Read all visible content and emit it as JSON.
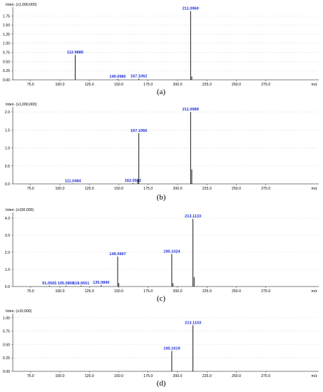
{
  "chart_data": [
    {
      "type": "bar",
      "panel_label": "(a)",
      "ylabel": "Inten. (x1,000,000)",
      "xlabel": "m/z",
      "xlim": [
        60,
        320
      ],
      "ylim": [
        0,
        1.95
      ],
      "xticks": [
        75.0,
        100.0,
        125.0,
        150.0,
        175.0,
        200.0,
        225.0,
        250.0,
        275.0
      ],
      "xtick_labels": [
        "75.0",
        "100.0",
        "125.0",
        "150.0",
        "175.0",
        "200.0",
        "225.0",
        "250.0",
        "275.0"
      ],
      "yticks": [
        0,
        0.25,
        0.5,
        0.75,
        1.0,
        1.25,
        1.5,
        1.75
      ],
      "ytick_labels": [
        "0.00",
        "0.25",
        "0.50",
        "0.75",
        "1.00",
        "1.25",
        "1.50",
        "1.75"
      ],
      "peaks": [
        {
          "mz": 112.9886,
          "value": 0.68,
          "label": "112.9886"
        },
        {
          "mz": 149.0985,
          "value": 0.02,
          "label": "149.0985"
        },
        {
          "mz": 167.1062,
          "value": 0.03,
          "label": "167.1062"
        },
        {
          "mz": 211.096,
          "value": 1.88,
          "label": "211.0960"
        },
        {
          "mz": 212.1,
          "value": 0.09,
          "label": ""
        }
      ]
    },
    {
      "type": "bar",
      "panel_label": "(b)",
      "ylabel": "Inten. (x1,000,000)",
      "xlabel": "m/z",
      "xlim": [
        60,
        320
      ],
      "ylim": [
        0,
        2.1
      ],
      "xticks": [
        75.0,
        100.0,
        125.0,
        150.0,
        175.0,
        200.0,
        225.0,
        250.0,
        275.0
      ],
      "xtick_labels": [
        "75.0",
        "100.0",
        "125.0",
        "150.0",
        "175.0",
        "200.0",
        "225.0",
        "250.0",
        "275.0"
      ],
      "yticks": [
        0,
        0.5,
        1.0,
        1.5,
        2.0
      ],
      "ytick_labels": [
        "0.0",
        "0.5",
        "1.0",
        "1.5",
        "2.0"
      ],
      "peaks": [
        {
          "mz": 111.0484,
          "value": 0.01,
          "label": "111.0484"
        },
        {
          "mz": 162.0582,
          "value": 0.02,
          "label": "162.0582"
        },
        {
          "mz": 166.1,
          "value": 0.12,
          "label": ""
        },
        {
          "mz": 167.1066,
          "value": 1.41,
          "label": "167.1066"
        },
        {
          "mz": 211.0989,
          "value": 2.0,
          "label": "211.0989"
        },
        {
          "mz": 212.1,
          "value": 0.4,
          "label": ""
        }
      ]
    },
    {
      "type": "bar",
      "panel_label": "(c)",
      "ylabel": "Inten. (x100,000)",
      "xlabel": "m/z",
      "xlim": [
        60,
        320
      ],
      "ylim": [
        0,
        4.25
      ],
      "xticks": [
        75.0,
        100.0,
        125.0,
        150.0,
        175.0,
        200.0,
        225.0,
        250.0,
        275.0
      ],
      "xtick_labels": [
        "75.0",
        "100.0",
        "125.0",
        "150.0",
        "175.0",
        "200.0",
        "225.0",
        "250.0",
        "275.0"
      ],
      "yticks": [
        0,
        1.0,
        2.0,
        3.0,
        4.0
      ],
      "ytick_labels": [
        "0.0",
        "1.0",
        "2.0",
        "3.0",
        "4.0"
      ],
      "peaks": [
        {
          "mz": 91.0565,
          "value": 0.05,
          "label": "91.0565"
        },
        {
          "mz": 105.0806,
          "value": 0.05,
          "label": "105.0806"
        },
        {
          "mz": 118.0651,
          "value": 0.05,
          "label": "118.0651"
        },
        {
          "mz": 135.084,
          "value": 0.08,
          "label": "135.0840"
        },
        {
          "mz": 149.0997,
          "value": 1.75,
          "label": "149.0997"
        },
        {
          "mz": 150.1,
          "value": 0.2,
          "label": ""
        },
        {
          "mz": 195.1024,
          "value": 1.9,
          "label": "195.1024"
        },
        {
          "mz": 196.1,
          "value": 0.2,
          "label": ""
        },
        {
          "mz": 213.1133,
          "value": 3.95,
          "label": "213.1133"
        },
        {
          "mz": 214.1,
          "value": 0.55,
          "label": ""
        }
      ]
    },
    {
      "type": "bar",
      "panel_label": "(d)",
      "ylabel": "Inten. (x10,000)",
      "xlabel": "m/z",
      "xlim": [
        60,
        320
      ],
      "ylim": [
        0,
        1.05
      ],
      "xticks": [
        75.0,
        100.0,
        125.0,
        150.0,
        175.0,
        200.0,
        225.0,
        250.0,
        275.0
      ],
      "xtick_labels": [
        "75.0",
        "100.0",
        "125.0",
        "150.0",
        "175.0",
        "200.0",
        "225.0",
        "250.0",
        "275.0"
      ],
      "yticks": [
        0,
        0.25,
        0.5,
        0.75,
        1.0
      ],
      "ytick_labels": [
        "0.00",
        "0.25",
        "0.50",
        "0.75",
        "1.00"
      ],
      "peaks": [
        {
          "mz": 195.1019,
          "value": 0.38,
          "label": "195.1019"
        },
        {
          "mz": 213.1103,
          "value": 0.86,
          "label": "213.1103"
        }
      ]
    }
  ],
  "colors": {
    "peak": "#000000",
    "peak_label": "#1f2fd8",
    "axis": "#555555",
    "grid": "#cccccc",
    "text": "#000000"
  }
}
